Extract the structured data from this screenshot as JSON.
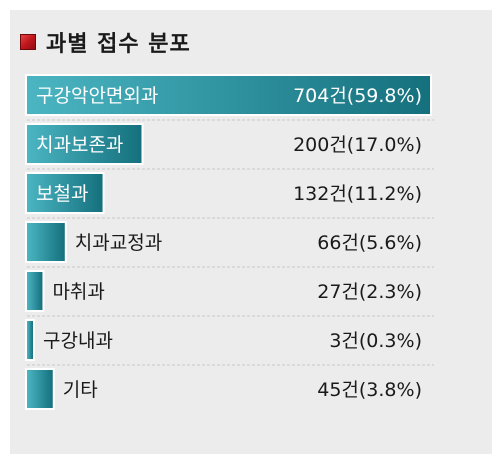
{
  "header": {
    "title": "과별 접수 분포",
    "icon": "red-square-icon",
    "icon_color": "#c0161c"
  },
  "colors": {
    "bar_start": "#4bb5c2",
    "bar_end": "#15707d",
    "background": "#ececec",
    "divider": "#c8c8c8"
  },
  "chart_data": {
    "type": "bar",
    "orientation": "horizontal",
    "title": "과별 접수 분포",
    "categories": [
      "구강악안면외과",
      "치과보존과",
      "보철과",
      "치과교정과",
      "마취과",
      "구강내과",
      "기타"
    ],
    "values": [
      704,
      200,
      132,
      66,
      27,
      3,
      45
    ],
    "percents": [
      59.8,
      17.0,
      11.2,
      5.6,
      2.3,
      0.3,
      3.8
    ],
    "value_labels": [
      "704건(59.8%)",
      "200건(17.0%)",
      "132건(11.2%)",
      "66건(5.6%)",
      "27건(2.3%)",
      "3건(0.3%)",
      "45건(3.8%)"
    ],
    "xlim": [
      0,
      704
    ],
    "grid": false,
    "legend": "none"
  }
}
